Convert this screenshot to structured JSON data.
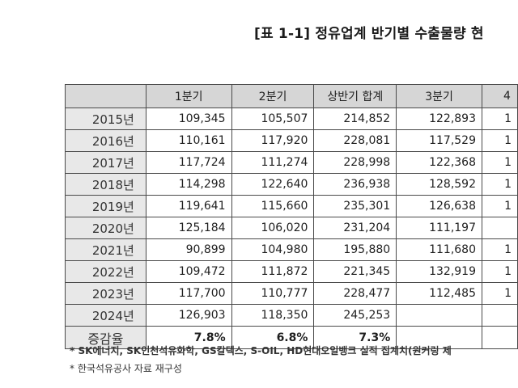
{
  "title": "[표 1-1] 정유업계 반기별 수출물량 현",
  "headers": [
    "",
    "1분기",
    "2분기",
    "상반기 합계",
    "3분기",
    "4"
  ],
  "rows": [
    {
      "year": "2015년",
      "q1": "109,345",
      "q2": "105,507",
      "h1": "214,852",
      "q3": "122,893",
      "q4": "1"
    },
    {
      "year": "2016년",
      "q1": "110,161",
      "q2": "117,920",
      "h1": "228,081",
      "q3": "117,529",
      "q4": "1"
    },
    {
      "year": "2017년",
      "q1": "117,724",
      "q2": "111,274",
      "h1": "228,998",
      "q3": "122,368",
      "q4": "1"
    },
    {
      "year": "2018년",
      "q1": "114,298",
      "q2": "122,640",
      "h1": "236,938",
      "q3": "128,592",
      "q4": "1"
    },
    {
      "year": "2019년",
      "q1": "119,641",
      "q2": "115,660",
      "h1": "235,301",
      "q3": "126,638",
      "q4": "1"
    },
    {
      "year": "2020년",
      "q1": "125,184",
      "q2": "106,020",
      "h1": "231,204",
      "q3": "111,197",
      "q4": ""
    },
    {
      "year": "2021년",
      "q1": "90,899",
      "q2": "104,980",
      "h1": "195,880",
      "q3": "111,680",
      "q4": "1"
    },
    {
      "year": "2022년",
      "q1": "109,472",
      "q2": "111,872",
      "h1": "221,345",
      "q3": "132,919",
      "q4": "1"
    },
    {
      "year": "2023년",
      "q1": "117,700",
      "q2": "110,777",
      "h1": "228,477",
      "q3": "112,485",
      "q4": "1"
    },
    {
      "year": "2024년",
      "q1": "126,903",
      "q2": "118,350",
      "h1": "245,253",
      "q3": "",
      "q4": ""
    }
  ],
  "growth": {
    "label": "증감율",
    "q1": "7.8%",
    "q2": "6.8%",
    "h1": "7.3%",
    "q3": "",
    "q4": ""
  },
  "notes": [
    "* SK에너지, SK인천석유화학, GS칼텍스, S-OIL, HD현대오일뱅크 실적 집계치(원커링 제",
    "* 한국석유공사 자료 재구성"
  ]
}
